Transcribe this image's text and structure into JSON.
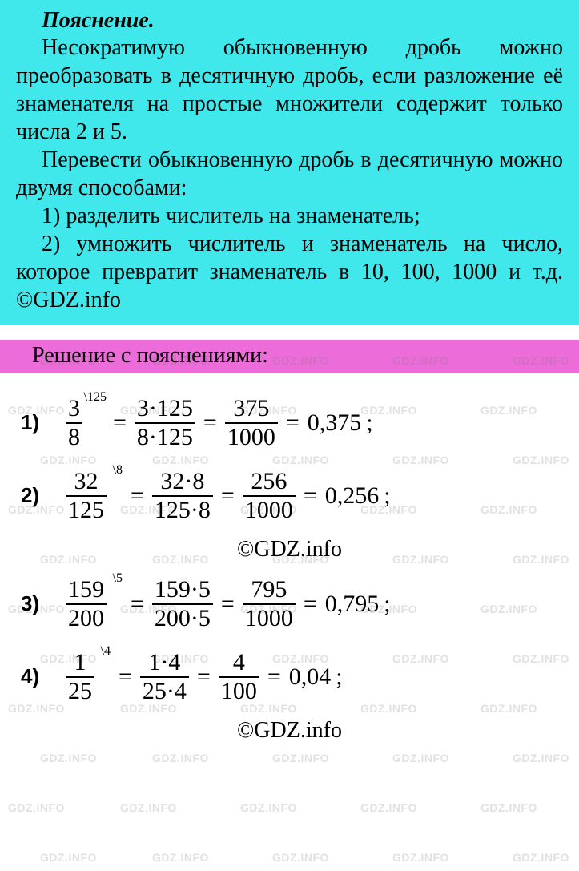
{
  "watermark": {
    "text": "GDZ.INFO",
    "color": "rgba(120,120,120,0.22)"
  },
  "explanation": {
    "title": "Пояснение.",
    "para1": "Несократимую обыкновенную дробь можно преобразовать в десятичную дробь, если разложение её знаменателя на простые множители содержит только числа 2 и 5.",
    "para2": "Перевести обыкновенную дробь в десятичную можно двумя способами:",
    "item1": "1) разделить числитель на знаме­натель;",
    "item2": "2) умножить числитель и знамена­тель на число, которое превратит знаменатель в 10, 100, 1000 и т.д. ©GDZ.info"
  },
  "solution_header": "Решение с пояснениями:",
  "copyright": "©GDZ.info",
  "equations": [
    {
      "label": "1)",
      "frac1_num": "3",
      "frac1_den": "8",
      "mult": "\\125",
      "frac2_num": "3·125",
      "frac2_den": "8·125",
      "frac3_num": "375",
      "frac3_den": "1000",
      "result": "0,375",
      "tail": ";"
    },
    {
      "label": "2)",
      "frac1_num": "32",
      "frac1_den": "125",
      "mult": "\\8",
      "frac2_num": "32·8",
      "frac2_den": "125·8",
      "frac3_num": "256",
      "frac3_den": "1000",
      "result": "0,256",
      "tail": ";"
    },
    {
      "label": "3)",
      "frac1_num": "159",
      "frac1_den": "200",
      "mult": "\\5",
      "frac2_num": "159·5",
      "frac2_den": "200·5",
      "frac3_num": "795",
      "frac3_den": "1000",
      "result": "0,795",
      "tail": ";"
    },
    {
      "label": "4)",
      "frac1_num": "1",
      "frac1_den": "25",
      "mult": "\\4",
      "frac2_num": "1·4",
      "frac2_den": "25·4",
      "frac3_num": "4",
      "frac3_den": "100",
      "result": "0,04",
      "tail": ";"
    }
  ],
  "colors": {
    "explanation_bg": "#40e8ec",
    "header_bg": "#ec6cd9",
    "page_bg": "#ffffff",
    "text": "#000000"
  },
  "fonts": {
    "body_family": "Times New Roman",
    "label_family": "Arial",
    "body_size_pt": 21,
    "math_size_pt": 22
  }
}
